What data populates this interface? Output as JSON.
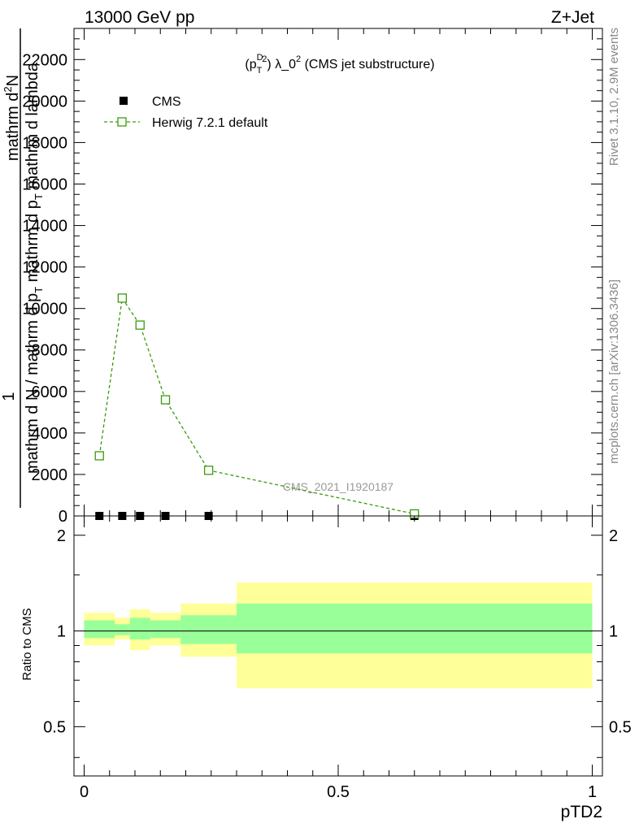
{
  "header": {
    "left": "13000 GeV pp",
    "right": "Z+Jet"
  },
  "side_text": {
    "rivet": "Rivet 3.1.10,  2.9M events",
    "mcplots": "mcplots.cern.ch [arXiv:1306.3436]"
  },
  "main_title": {
    "prefix": "(p",
    "sup_d": "D",
    "sub_t": "T",
    "sq": "2",
    "mid": ") ",
    "lam": "λ_0",
    "sq2": "2",
    "suffix": " (CMS jet substructure)"
  },
  "ylabel_main": {
    "one": "1",
    "numerator": "mathrm d",
    "numerator_sup": "2",
    "numerator_tail": "N",
    "denominator": "mathrm d N / mathrm d p",
    "denominator_sub": "T",
    "denominator_tail": " mathrm d p",
    "denominator_sub2": "T",
    "denominator_tail2": " mathrm d lambda"
  },
  "watermark": "CMS_2021_I1920187",
  "ylabel_ratio": "Ratio to CMS",
  "xlabel": "pTD2",
  "chart_data": [
    {
      "type": "scatter",
      "panel": "main",
      "xlim": [
        -0.02,
        1.02
      ],
      "ylim": [
        0,
        23500
      ],
      "yticks_major": [
        0,
        2000,
        4000,
        6000,
        8000,
        10000,
        12000,
        14000,
        16000,
        18000,
        20000,
        22000
      ],
      "ytick_labels": [
        "0",
        "2000",
        "4000",
        "6000",
        "8000",
        "10000",
        "12000",
        "14000",
        "16000",
        "18000",
        "20000",
        "22000"
      ],
      "legend_placement": "top-left",
      "series": [
        {
          "name": "CMS",
          "color": "#000000",
          "marker": "filled-square",
          "x": [
            0.03,
            0.075,
            0.11,
            0.16,
            0.245,
            0.65
          ],
          "y": [
            0,
            0,
            0,
            0,
            0,
            0
          ]
        },
        {
          "name": "Herwig 7.2.1 default",
          "color": "#3a9a0c",
          "marker": "open-square",
          "line": "dashed",
          "x": [
            0.03,
            0.075,
            0.11,
            0.16,
            0.245,
            0.65
          ],
          "y": [
            2900,
            10500,
            9200,
            5600,
            2200,
            100
          ]
        }
      ]
    },
    {
      "type": "area",
      "panel": "ratio",
      "xlim": [
        -0.02,
        1.02
      ],
      "ylim": [
        0.35,
        2.3
      ],
      "yticks_major": [
        0.5,
        1,
        2
      ],
      "ytick_labels": [
        "0.5",
        "1",
        "2"
      ],
      "xticks_major": [
        0,
        0.5,
        1
      ],
      "xtick_labels": [
        "0",
        "0.5",
        "1"
      ],
      "reference_line": 1,
      "bands": {
        "inner_color": "#99ff99",
        "outer_color": "#ffff99",
        "bins": [
          {
            "x0": 0.0,
            "x1": 0.06,
            "in_lo": 0.95,
            "in_hi": 1.08,
            "out_lo": 0.9,
            "out_hi": 1.14
          },
          {
            "x0": 0.06,
            "x1": 0.09,
            "in_lo": 0.97,
            "in_hi": 1.05,
            "out_lo": 0.94,
            "out_hi": 1.1
          },
          {
            "x0": 0.09,
            "x1": 0.13,
            "in_lo": 0.94,
            "in_hi": 1.1,
            "out_lo": 0.87,
            "out_hi": 1.17
          },
          {
            "x0": 0.13,
            "x1": 0.19,
            "in_lo": 0.95,
            "in_hi": 1.08,
            "out_lo": 0.9,
            "out_hi": 1.14
          },
          {
            "x0": 0.19,
            "x1": 0.3,
            "in_lo": 0.91,
            "in_hi": 1.12,
            "out_lo": 0.83,
            "out_hi": 1.22
          },
          {
            "x0": 0.3,
            "x1": 1.0,
            "in_lo": 0.85,
            "in_hi": 1.22,
            "out_lo": 0.66,
            "out_hi": 1.42
          }
        ]
      },
      "series": []
    }
  ]
}
